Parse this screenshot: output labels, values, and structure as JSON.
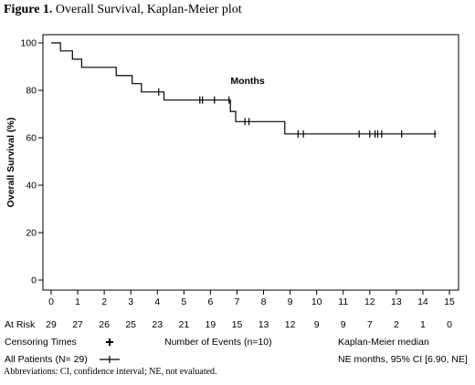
{
  "figure": {
    "label": "Figure 1.",
    "title": "Overall Survival, Kaplan-Meier plot",
    "abbreviations": "Abbreviations: CI, confidence interval; NE, not evaluated."
  },
  "chart_data": {
    "type": "line",
    "xlabel": "Months",
    "ylabel": "Overall Survival (%)",
    "xlim": [
      0,
      15
    ],
    "ylim": [
      0,
      100
    ],
    "x_ticks": [
      0,
      1,
      2,
      3,
      4,
      5,
      6,
      7,
      8,
      9,
      10,
      11,
      12,
      13,
      14,
      15
    ],
    "y_ticks": [
      0,
      20,
      40,
      60,
      80,
      100
    ],
    "grid": false,
    "series": [
      {
        "name": "All Patients (N= 29)",
        "step_points": [
          [
            0,
            100
          ],
          [
            0.35,
            100
          ],
          [
            0.35,
            96.6
          ],
          [
            0.8,
            96.6
          ],
          [
            0.8,
            93.1
          ],
          [
            1.15,
            93.1
          ],
          [
            1.15,
            89.7
          ],
          [
            2.45,
            89.7
          ],
          [
            2.45,
            86.2
          ],
          [
            3.05,
            86.2
          ],
          [
            3.05,
            82.8
          ],
          [
            3.4,
            82.8
          ],
          [
            3.4,
            79.3
          ],
          [
            4.25,
            79.3
          ],
          [
            4.25,
            75.9
          ],
          [
            6.75,
            75.9
          ],
          [
            6.75,
            71.1
          ],
          [
            6.95,
            71.1
          ],
          [
            6.95,
            66.8
          ],
          [
            8.8,
            66.8
          ],
          [
            8.8,
            61.6
          ],
          [
            14.5,
            61.6
          ]
        ],
        "censor_times": [
          [
            4.05,
            79.3
          ],
          [
            5.6,
            75.9
          ],
          [
            5.7,
            75.9
          ],
          [
            6.15,
            75.9
          ],
          [
            6.7,
            75.9
          ],
          [
            7.3,
            66.8
          ],
          [
            7.45,
            66.8
          ],
          [
            9.3,
            61.6
          ],
          [
            9.5,
            61.6
          ],
          [
            11.6,
            61.6
          ],
          [
            12.0,
            61.6
          ],
          [
            12.2,
            61.6
          ],
          [
            12.3,
            61.6
          ],
          [
            12.45,
            61.6
          ],
          [
            13.2,
            61.6
          ],
          [
            14.45,
            61.6
          ]
        ]
      }
    ],
    "at_risk": {
      "label": "At Risk",
      "x": [
        0,
        1,
        2,
        3,
        4,
        5,
        6,
        7,
        8,
        9,
        10,
        11,
        12,
        13,
        14,
        15
      ],
      "counts": [
        "29",
        "27",
        "26",
        "25",
        "23",
        "21",
        "19",
        "15",
        "13",
        "12",
        "9",
        "9",
        "7",
        "2",
        "1",
        "0"
      ]
    }
  },
  "legend": {
    "censoring_label": "Censoring Times",
    "patients_label": "All Patients (N= 29)",
    "events_label": "Number of Events (n=10)",
    "km_label": "Kaplan-Meier median",
    "km_value": "NE months, 95% CI [6.90, NE]"
  },
  "colors": {
    "line": "#000000",
    "frame": "#000000"
  }
}
